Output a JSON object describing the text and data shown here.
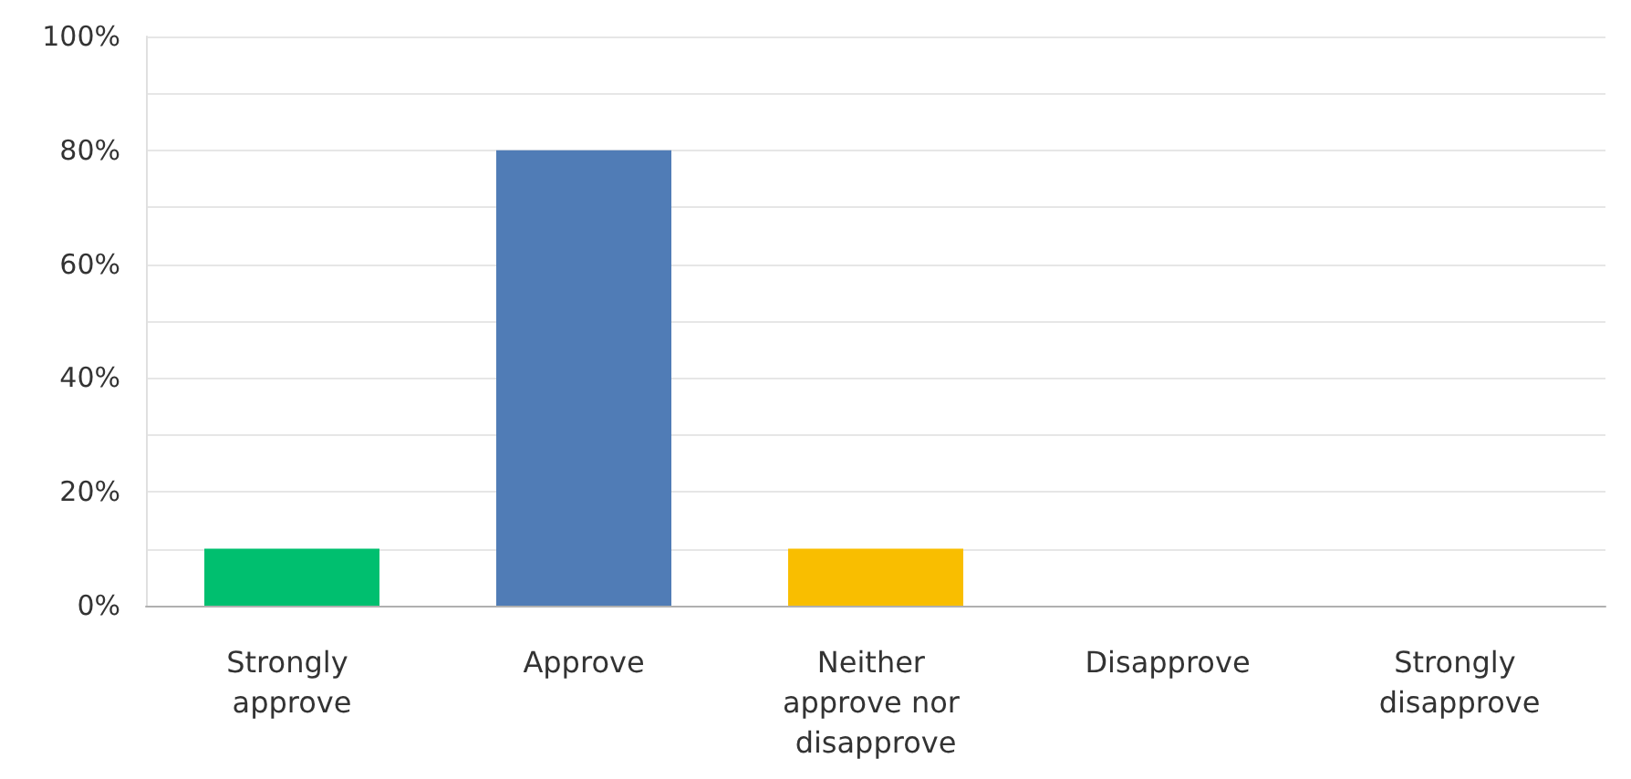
{
  "chart_data": {
    "type": "bar",
    "categories": [
      "Strongly approve",
      "Approve",
      "Neither approve nor disapprove",
      "Disapprove",
      "Strongly disapprove"
    ],
    "values": [
      10,
      80,
      10,
      0,
      0
    ],
    "colors": [
      "#00bf6f",
      "#507cb6",
      "#f9be00",
      "#6bc8cd",
      "#ff8b4f"
    ],
    "ylim": [
      0,
      100
    ],
    "yticks": [
      {
        "value": 0,
        "label": "0%"
      },
      {
        "value": 10,
        "label": null
      },
      {
        "value": 20,
        "label": "20%"
      },
      {
        "value": 30,
        "label": null
      },
      {
        "value": 40,
        "label": "40%"
      },
      {
        "value": 50,
        "label": null
      },
      {
        "value": 60,
        "label": "60%"
      },
      {
        "value": 70,
        "label": null
      },
      {
        "value": 80,
        "label": "80%"
      },
      {
        "value": 90,
        "label": null
      },
      {
        "value": 100,
        "label": "100%"
      }
    ],
    "grid": true
  }
}
